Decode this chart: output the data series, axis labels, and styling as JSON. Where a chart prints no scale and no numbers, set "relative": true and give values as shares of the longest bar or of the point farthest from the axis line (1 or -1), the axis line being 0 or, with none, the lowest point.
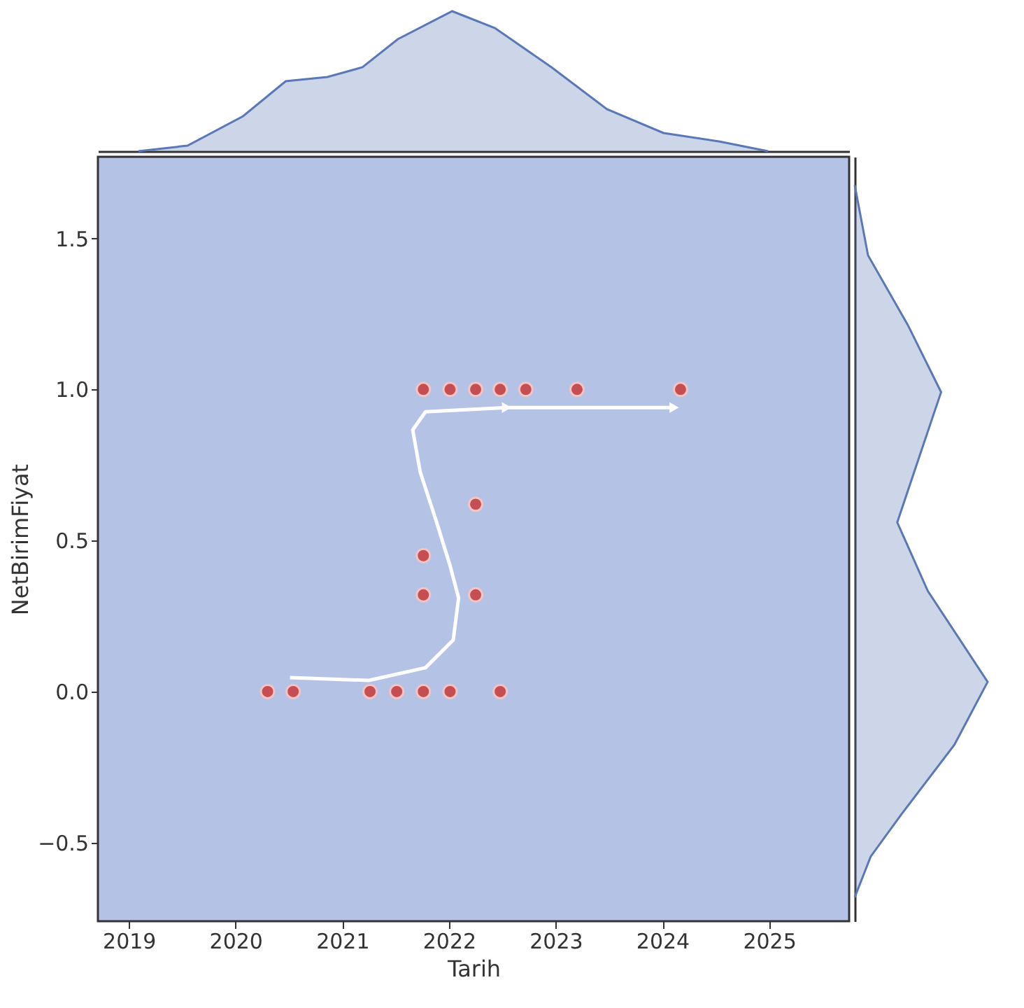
{
  "chart_data": [
    {
      "type": "area",
      "relative": true,
      "color": "#5a78b5",
      "xlim": [
        2018.71,
        2025.75
      ],
      "tick_labels": false,
      "x": [
        2019.09,
        2019.55,
        2020.07,
        2020.47,
        2020.86,
        2021.19,
        2021.52,
        2022.03,
        2022.43,
        2022.96,
        2023.48,
        2024.01,
        2024.53,
        2024.99
      ],
      "values": [
        0,
        0.04,
        0.25,
        0.5,
        0.53,
        0.6,
        0.8,
        1.0,
        0.88,
        0.6,
        0.3,
        0.13,
        0.07,
        0
      ]
    },
    {
      "type": "scatter",
      "xlabel": "Tarih",
      "ylabel": "NetBirimFiyat",
      "xlim": [
        2018.71,
        2025.75
      ],
      "ylim": [
        -0.76,
        1.77
      ],
      "xticks": [
        {
          "value": 2019,
          "label": "2019"
        },
        {
          "value": 2020,
          "label": "2020"
        },
        {
          "value": 2021,
          "label": "2021"
        },
        {
          "value": 2022,
          "label": "2022"
        },
        {
          "value": 2023,
          "label": "2023"
        },
        {
          "value": 2024,
          "label": "2024"
        },
        {
          "value": 2025,
          "label": "2025"
        }
      ],
      "yticks": [
        {
          "value": -0.5,
          "label": "−0.5"
        },
        {
          "value": 0,
          "label": "0.0"
        },
        {
          "value": 0.5,
          "label": "0.5"
        },
        {
          "value": 1,
          "label": "1.0"
        },
        {
          "value": 1.5,
          "label": "1.5"
        }
      ],
      "grid": false,
      "series": [
        {
          "type": "scatter",
          "color": "#c44e52",
          "x": [
            2021.76,
            2022.01,
            2022.25,
            2022.48,
            2022.72,
            2023.2,
            2024.17,
            2020.3,
            2020.54,
            2021.26,
            2021.51,
            2021.76,
            2022.01,
            2022.48,
            2021.76,
            2021.76,
            2022.25,
            2022.25
          ],
          "values": [
            1,
            1,
            1,
            1,
            1,
            1,
            1,
            0,
            0,
            0,
            0,
            0,
            0,
            0,
            0.45,
            0.32,
            0.62,
            0.32
          ]
        },
        {
          "type": "line",
          "color": "#ffffff",
          "x": [
            2020.51,
            2021.25,
            2021.78,
            2022.04,
            2022.09,
            2022.01,
            2021.88,
            2021.73,
            2021.66,
            2021.78,
            2022.54
          ],
          "values": [
            0.046,
            0.037,
            0.079,
            0.171,
            0.31,
            0.417,
            0.565,
            0.727,
            0.866,
            0.926,
            0.94
          ]
        },
        {
          "type": "line",
          "color": "#ffffff",
          "x": [
            2022.54,
            2024.11
          ],
          "values": [
            0.94,
            0.94
          ]
        }
      ]
    },
    {
      "type": "area",
      "relative": true,
      "orientation": "horizontal",
      "color": "#5a78b5",
      "ylim": [
        -0.76,
        1.77
      ],
      "tick_labels": false,
      "x": [
        1.676,
        1.444,
        1.213,
        0.991,
        0.796,
        0.56,
        0.333,
        0.032,
        -0.176,
        -0.407,
        -0.546,
        -0.681
      ],
      "values": [
        0,
        0.1,
        0.4,
        0.65,
        0.5,
        0.32,
        0.55,
        1.0,
        0.75,
        0.35,
        0.12,
        0
      ]
    }
  ]
}
